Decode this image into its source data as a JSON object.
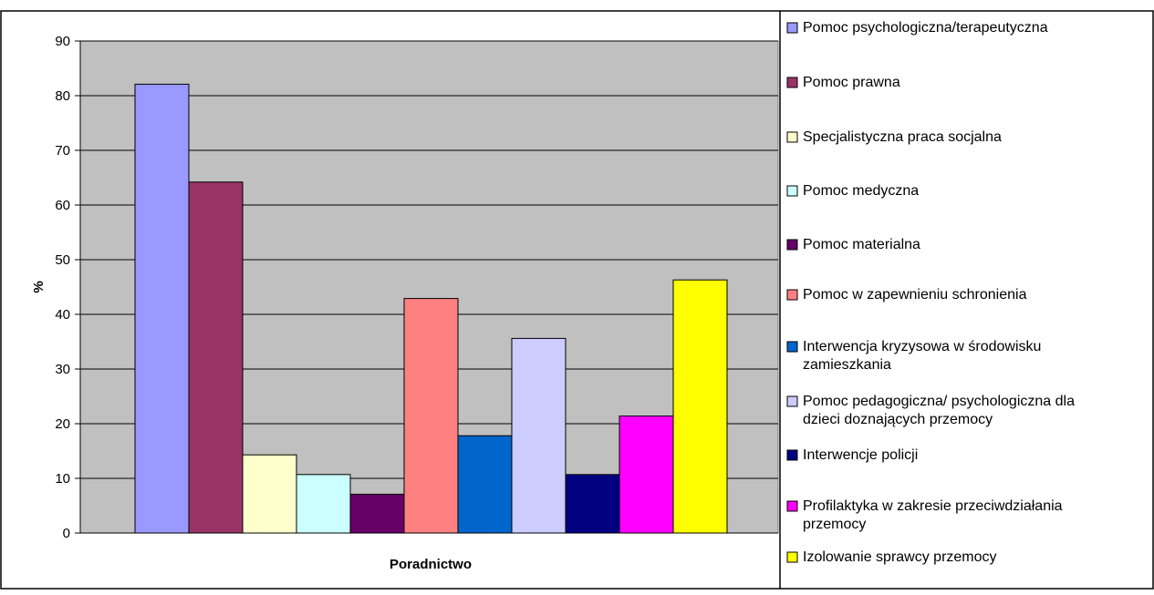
{
  "chart_data": {
    "type": "bar",
    "title": "",
    "xlabel": "Poradnictwo",
    "ylabel": "%",
    "ylim": [
      0,
      90
    ],
    "yticks": [
      0,
      10,
      20,
      30,
      40,
      50,
      60,
      70,
      80,
      90
    ],
    "categories": [
      "Poradnictwo"
    ],
    "grid": true,
    "legend_position": "right",
    "plot_background": "#C0C0C0",
    "series": [
      {
        "name": "Pomoc psychologiczna/terapeutyczna",
        "values": [
          82.1
        ],
        "color": "#9999FF"
      },
      {
        "name": "Pomoc prawna",
        "values": [
          64.2
        ],
        "color": "#993366"
      },
      {
        "name": "Specjalistyczna praca socjalna",
        "values": [
          14.3
        ],
        "color": "#FFFFCC"
      },
      {
        "name": "Pomoc medyczna",
        "values": [
          10.7
        ],
        "color": "#CCFFFF"
      },
      {
        "name": "Pomoc materialna",
        "values": [
          7.1
        ],
        "color": "#660066"
      },
      {
        "name": "Pomoc w zapewnieniu schronienia",
        "values": [
          42.9
        ],
        "color": "#FF8080"
      },
      {
        "name": "Interwencja kryzysowa w środowisku zamieszkania",
        "values": [
          17.8
        ],
        "color": "#0066CC"
      },
      {
        "name": "Pomoc pedagogiczna/ psychologiczna dla dzieci doznających przemocy",
        "values": [
          35.6
        ],
        "color": "#CCCCFF"
      },
      {
        "name": "Interwencje policji",
        "values": [
          10.7
        ],
        "color": "#000080"
      },
      {
        "name": "Profilaktyka w zakresie przeciwdziałania przemocy",
        "values": [
          21.4
        ],
        "color": "#FF00FF"
      },
      {
        "name": "Izolowanie sprawcy przemocy",
        "values": [
          46.3
        ],
        "color": "#FFFF00"
      }
    ]
  }
}
